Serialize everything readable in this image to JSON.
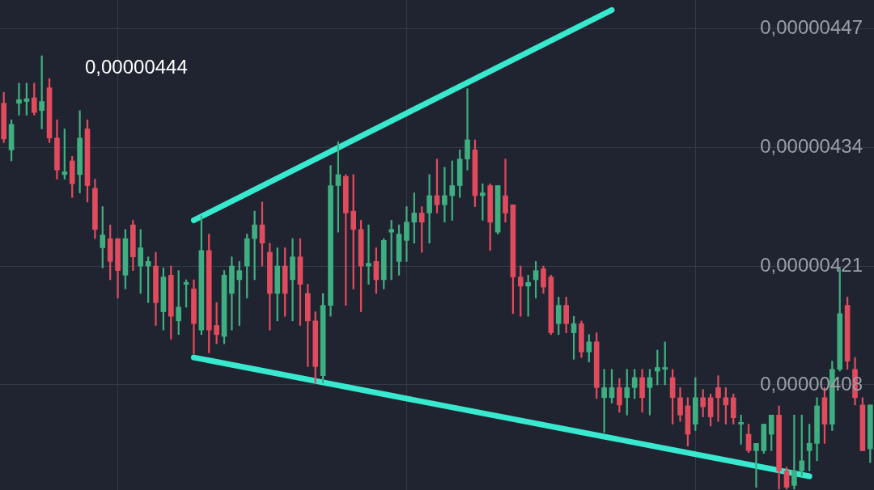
{
  "chart_data": {
    "type": "candlestick",
    "categories": [
      null,
      null,
      null,
      null,
      null,
      null,
      null,
      null,
      null,
      null,
      null,
      null,
      null,
      null,
      null,
      null,
      null,
      null,
      null,
      null,
      null,
      null,
      null,
      null,
      null,
      null,
      null,
      null,
      null,
      null,
      null,
      null,
      null,
      null,
      null,
      null,
      null,
      null,
      null,
      null,
      null,
      null,
      null,
      null,
      null,
      null,
      null,
      null,
      null,
      null,
      null,
      null,
      null,
      null,
      null,
      null,
      null,
      null,
      null,
      null,
      null,
      null,
      null,
      null,
      null,
      null,
      null,
      null,
      null,
      null,
      null,
      null,
      null,
      null,
      null,
      null,
      null,
      null,
      null,
      null,
      null,
      null,
      null,
      null,
      null,
      null,
      null,
      null,
      null,
      null,
      null,
      null,
      null,
      null,
      null,
      null,
      null,
      null,
      null,
      null,
      null,
      null,
      null,
      null,
      null,
      null,
      null,
      null,
      null,
      null,
      null,
      null,
      null,
      null,
      null
    ],
    "ohlc": [
      [
        4.388e-06,
        4.4e-06,
        4.345e-06,
        4.349e-06
      ],
      [
        4.337e-06,
        4.37e-06,
        4.325e-06,
        4.365e-06
      ],
      [
        4.388e-06,
        4.41e-06,
        4.375e-06,
        4.392e-06
      ],
      [
        4.39e-06,
        4.41e-06,
        4.375e-06,
        4.393e-06
      ],
      [
        4.394e-06,
        4.41e-06,
        4.375e-06,
        4.378e-06
      ],
      [
        4.38e-06,
        4.44e-06,
        4.36e-06,
        4.39e-06
      ],
      [
        4.405e-06,
        4.415e-06,
        4.345e-06,
        4.35e-06
      ],
      [
        4.35e-06,
        4.37e-06,
        4.305e-06,
        4.315e-06
      ],
      [
        4.31e-06,
        4.36e-06,
        4.305e-06,
        4.313e-06
      ],
      [
        4.325e-06,
        4.33e-06,
        4.285e-06,
        4.3e-06
      ],
      [
        4.31e-06,
        4.38e-06,
        4.29e-06,
        4.35e-06
      ],
      [
        4.36e-06,
        4.37e-06,
        4.28e-06,
        4.298e-06
      ],
      [
        4.295e-06,
        4.305e-06,
        4.24e-06,
        4.25e-06
      ],
      [
        4.23e-06,
        4.275e-06,
        4.208e-06,
        4.244e-06
      ],
      [
        4.24e-06,
        4.255e-06,
        4.195e-06,
        4.215e-06
      ],
      [
        4.24e-06,
        4.24e-06,
        4.175e-06,
        4.205e-06
      ],
      [
        4.2e-06,
        4.25e-06,
        4.185e-06,
        4.24e-06
      ],
      [
        4.255e-06,
        4.26e-06,
        4.205e-06,
        4.22e-06
      ],
      [
        4.21e-06,
        4.25e-06,
        4.18e-06,
        4.23e-06
      ],
      [
        4.21e-06,
        4.22e-06,
        4.17e-06,
        4.215e-06
      ],
      [
        4.21e-06,
        4.225e-06,
        4.145e-06,
        4.17e-06
      ],
      [
        4.16e-06,
        4.208e-06,
        4.14e-06,
        4.198e-06
      ],
      [
        4.2e-06,
        4.21e-06,
        4.13e-06,
        4.155e-06
      ],
      [
        4.15e-06,
        4.205e-06,
        4.135e-06,
        4.165e-06
      ],
      [
        4.19e-06,
        4.195e-06,
        4.165e-06,
        4.192e-06
      ],
      [
        4.185e-06,
        4.195e-06,
        4.114e-06,
        4.147e-06
      ],
      [
        4.14e-06,
        4.265e-06,
        4.135e-06,
        4.227e-06
      ],
      [
        4.227e-06,
        4.245e-06,
        4.115e-06,
        4.14e-06
      ],
      [
        4.145e-06,
        4.17e-06,
        4.125e-06,
        4.135e-06
      ],
      [
        4.133e-06,
        4.205e-06,
        4.125e-06,
        4.2e-06
      ],
      [
        4.18e-06,
        4.22e-06,
        4.14e-06,
        4.21e-06
      ],
      [
        4.195e-06,
        4.215e-06,
        4.145e-06,
        4.205e-06
      ],
      [
        4.21e-06,
        4.245e-06,
        4.175e-06,
        4.24e-06
      ],
      [
        4.24e-06,
        4.27e-06,
        4.195e-06,
        4.255e-06
      ],
      [
        4.255e-06,
        4.28e-06,
        4.21e-06,
        4.235e-06
      ],
      [
        4.225e-06,
        4.235e-06,
        4.14e-06,
        4.18e-06
      ],
      [
        4.18e-06,
        4.23e-06,
        4.15e-06,
        4.21e-06
      ],
      [
        4.21e-06,
        4.23e-06,
        4.155e-06,
        4.18e-06
      ],
      [
        4.195e-06,
        4.24e-06,
        4.15e-06,
        4.22e-06
      ],
      [
        4.22e-06,
        4.24e-06,
        4.145e-06,
        4.19e-06
      ],
      [
        4.18e-06,
        4.19e-06,
        4.1e-06,
        4.15e-06
      ],
      [
        4.15e-06,
        4.16e-06,
        4.082e-06,
        4.1e-06
      ],
      [
        4.09e-06,
        4.18e-06,
        4.082e-06,
        4.167e-06
      ],
      [
        4.167e-06,
        4.32e-06,
        4.155e-06,
        4.298e-06
      ],
      [
        4.298e-06,
        4.346e-06,
        4.247e-06,
        4.31e-06
      ],
      [
        4.308e-06,
        4.31e-06,
        4.167e-06,
        4.268e-06
      ],
      [
        4.27e-06,
        4.31e-06,
        4.185e-06,
        4.25e-06
      ],
      [
        4.25e-06,
        4.26e-06,
        4.16e-06,
        4.21e-06
      ],
      [
        4.21e-06,
        4.255e-06,
        4.19e-06,
        4.213e-06
      ],
      [
        4.215e-06,
        4.23e-06,
        4.18e-06,
        4.195e-06
      ],
      [
        4.195e-06,
        4.24e-06,
        4.185e-06,
        4.238e-06
      ],
      [
        4.247e-06,
        4.26e-06,
        4.195e-06,
        4.25e-06
      ],
      [
        4.215e-06,
        4.255e-06,
        4.2e-06,
        4.245e-06
      ],
      [
        4.238e-06,
        4.275e-06,
        4.215e-06,
        4.258e-06
      ],
      [
        4.258e-06,
        4.29e-06,
        4.235e-06,
        4.268e-06
      ],
      [
        4.268e-06,
        4.275e-06,
        4.225e-06,
        4.258e-06
      ],
      [
        4.268e-06,
        4.31e-06,
        4.235e-06,
        4.287e-06
      ],
      [
        4.287e-06,
        4.327e-06,
        4.268e-06,
        4.277e-06
      ],
      [
        4.277e-06,
        4.318e-06,
        4.258e-06,
        4.287e-06
      ],
      [
        4.287e-06,
        4.325e-06,
        4.26e-06,
        4.298e-06
      ],
      [
        4.298e-06,
        4.337e-06,
        4.285e-06,
        4.327e-06
      ],
      [
        4.327e-06,
        4.404e-06,
        4.315e-06,
        4.348e-06
      ],
      [
        4.337e-06,
        4.348e-06,
        4.275e-06,
        4.287e-06
      ],
      [
        4.287e-06,
        4.3e-06,
        4.26e-06,
        4.29e-06
      ],
      [
        4.298e-06,
        4.3e-06,
        4.227e-06,
        4.258e-06
      ],
      [
        4.247e-06,
        4.298e-06,
        4.245e-06,
        4.298e-06
      ],
      [
        4.287e-06,
        4.327e-06,
        4.258e-06,
        4.268e-06
      ],
      [
        4.277e-06,
        4.277e-06,
        4.158e-06,
        4.198e-06
      ],
      [
        4.198e-06,
        4.21e-06,
        4.155e-06,
        4.188e-06
      ],
      [
        4.188e-06,
        4.2e-06,
        4.155e-06,
        4.192e-06
      ],
      [
        4.195e-06,
        4.215e-06,
        4.175e-06,
        4.205e-06
      ],
      [
        4.207e-06,
        4.21e-06,
        4.18e-06,
        4.187e-06
      ],
      [
        4.198e-06,
        4.2e-06,
        4.135e-06,
        4.137e-06
      ],
      [
        4.147e-06,
        4.176e-06,
        4.135e-06,
        4.167e-06
      ],
      [
        4.167e-06,
        4.176e-06,
        4.137e-06,
        4.147e-06
      ],
      [
        4.137e-06,
        4.155e-06,
        4.108e-06,
        4.147e-06
      ],
      [
        4.147e-06,
        4.15e-06,
        4.11e-06,
        4.116e-06
      ],
      [
        4.116e-06,
        4.135e-06,
        4.105e-06,
        4.127e-06
      ],
      [
        4.127e-06,
        4.137e-06,
        4.065e-06,
        4.077e-06
      ],
      [
        4.066e-06,
        4.097e-06,
        4.028e-06,
        4.077e-06
      ],
      [
        4.066e-06,
        4.097e-06,
        4.06e-06,
        4.077e-06
      ],
      [
        4.077e-06,
        4.087e-06,
        4.05e-06,
        4.058e-06
      ],
      [
        4.066e-06,
        4.097e-06,
        4.047e-06,
        4.077e-06
      ],
      [
        4.077e-06,
        4.097e-06,
        4.065e-06,
        4.088e-06
      ],
      [
        4.088e-06,
        4.097e-06,
        4.05e-06,
        4.066e-06
      ],
      [
        4.077e-06,
        4.097e-06,
        4.047e-06,
        4.088e-06
      ],
      [
        4.095e-06,
        4.118e-06,
        4.08e-06,
        4.099e-06
      ],
      [
        4.097e-06,
        4.127e-06,
        4.08e-06,
        4.099e-06
      ],
      [
        4.088e-06,
        4.097e-06,
        4.037e-06,
        4.066e-06
      ],
      [
        4.066e-06,
        4.077e-06,
        4.04e-06,
        4.047e-06
      ],
      [
        4.057e-06,
        4.066e-06,
        4.013e-06,
        4.026e-06
      ],
      [
        4.037e-06,
        4.088e-06,
        4.03e-06,
        4.066e-06
      ],
      [
        4.066e-06,
        4.075e-06,
        4.045e-06,
        4.056e-06
      ],
      [
        4.066e-06,
        4.07e-06,
        4.035e-06,
        4.045e-06
      ],
      [
        4.077e-06,
        4.09e-06,
        4.04e-06,
        4.066e-06
      ],
      [
        4.066e-06,
        4.077e-06,
        4.037e-06,
        4.058e-06
      ],
      [
        4.066e-06,
        4.07e-06,
        4.037e-06,
        4.044e-06
      ],
      [
        4.037e-06,
        4.047e-06,
        4.015e-06,
        4.039e-06
      ],
      [
        4.026e-06,
        4.037e-06,
        4.006e-06,
        4.008e-06
      ],
      [
        4.008e-06,
        4.016e-06,
        3.968e-06,
        4.016e-06
      ],
      [
        4.008e-06,
        4.037e-06,
        4.005e-06,
        4.037e-06
      ],
      [
        4.026e-06,
        4.047e-06,
        4.008e-06,
        4.047e-06
      ],
      [
        4.047e-06,
        4.057e-06,
        3.966e-06,
        3.986e-06
      ],
      [
        3.986e-06,
        3.99e-06,
        3.966e-06,
        3.968e-06
      ],
      [
        3.97e-06,
        4.047e-06,
        3.966e-06,
        3.986e-06
      ],
      [
        3.986e-06,
        4.047e-06,
        3.98e-06,
        3.997e-06
      ],
      [
        4.008e-06,
        4.037e-06,
        3.986e-06,
        4.016e-06
      ],
      [
        4.016e-06,
        4.066e-06,
        3.997e-06,
        4.057e-06
      ],
      [
        4.066e-06,
        4.077e-06,
        4.016e-06,
        4.037e-06
      ],
      [
        4.037e-06,
        4.106e-06,
        4.03e-06,
        4.097e-06
      ],
      [
        4.097e-06,
        4.207e-06,
        4.095e-06,
        4.158e-06
      ],
      [
        4.167e-06,
        4.176e-06,
        4.097e-06,
        4.106e-06
      ],
      [
        4.097e-06,
        4.11e-06,
        4.058e-06,
        4.066e-06
      ],
      [
        4.058e-06,
        4.066e-06,
        4.008e-06,
        4.008e-06
      ],
      [
        4.01e-06,
        4.058e-06,
        3.995e-06,
        4.058e-06
      ]
    ],
    "colors": [
      "#e04b5e",
      "#3fae80",
      "#3fae80",
      "#3fae80",
      "#e04b5e",
      "#3fae80",
      "#e04b5e",
      "#e04b5e",
      "#3fae80",
      "#e04b5e",
      "#3fae80",
      "#e04b5e",
      "#e04b5e",
      "#3fae80",
      "#e04b5e",
      "#e04b5e",
      "#3fae80",
      "#e04b5e",
      "#3fae80",
      "#3fae80",
      "#e04b5e",
      "#3fae80",
      "#e04b5e",
      "#3fae80",
      "#3fae80",
      "#e04b5e",
      "#3fae80",
      "#e04b5e",
      "#e04b5e",
      "#3fae80",
      "#3fae80",
      "#3fae80",
      "#3fae80",
      "#3fae80",
      "#e04b5e",
      "#e04b5e",
      "#3fae80",
      "#e04b5e",
      "#3fae80",
      "#e04b5e",
      "#e04b5e",
      "#e04b5e",
      "#3fae80",
      "#3fae80",
      "#3fae80",
      "#e04b5e",
      "#e04b5e",
      "#e04b5e",
      "#3fae80",
      "#e04b5e",
      "#3fae80",
      "#3fae80",
      "#3fae80",
      "#3fae80",
      "#3fae80",
      "#e04b5e",
      "#3fae80",
      "#e04b5e",
      "#3fae80",
      "#3fae80",
      "#3fae80",
      "#3fae80",
      "#e04b5e",
      "#3fae80",
      "#e04b5e",
      "#3fae80",
      "#e04b5e",
      "#e04b5e",
      "#e04b5e",
      "#3fae80",
      "#3fae80",
      "#e04b5e",
      "#e04b5e",
      "#3fae80",
      "#e04b5e",
      "#3fae80",
      "#e04b5e",
      "#3fae80",
      "#e04b5e",
      "#3fae80",
      "#3fae80",
      "#e04b5e",
      "#3fae80",
      "#3fae80",
      "#e04b5e",
      "#3fae80",
      "#3fae80",
      "#3fae80",
      "#e04b5e",
      "#e04b5e",
      "#e04b5e",
      "#3fae80",
      "#e04b5e",
      "#e04b5e",
      "#e04b5e",
      "#e04b5e",
      "#e04b5e",
      "#3fae80",
      "#e04b5e",
      "#3fae80",
      "#3fae80",
      "#3fae80",
      "#e04b5e",
      "#e04b5e",
      "#3fae80",
      "#3fae80",
      "#3fae80",
      "#3fae80",
      "#e04b5e",
      "#3fae80",
      "#3fae80",
      "#e04b5e",
      "#e04b5e",
      "#e04b5e",
      "#3fae80"
    ],
    "series": [
      {
        "type": "line",
        "color": "#38e8cf",
        "values": [
          null,
          null,
          null,
          null,
          null,
          null,
          null,
          null,
          null,
          null,
          null,
          null,
          null,
          null,
          null,
          null,
          null,
          null,
          null,
          null,
          null,
          null,
          null,
          null,
          null,
          4.26e-06,
          null,
          null,
          null,
          null,
          null,
          null,
          null,
          null,
          null,
          null,
          null,
          null,
          null,
          null,
          null,
          null,
          null,
          null,
          null,
          null,
          null,
          null,
          null,
          null,
          null,
          null,
          null,
          null,
          null,
          null,
          null,
          null,
          null,
          null,
          null,
          null,
          null,
          null,
          null,
          null,
          null,
          null,
          null,
          null,
          null,
          null,
          null,
          null,
          null,
          null,
          null,
          null,
          null,
          null,
          4.49e-06,
          null,
          null,
          null,
          null,
          null,
          null,
          null,
          null,
          null,
          null,
          null,
          null,
          null,
          null,
          null,
          null,
          null,
          null,
          null,
          null,
          null,
          null,
          null,
          null,
          null,
          null,
          null,
          null,
          null,
          null,
          null,
          null,
          null,
          null
        ]
      },
      {
        "type": "line",
        "color": "#38e8cf",
        "values": [
          null,
          null,
          null,
          null,
          null,
          null,
          null,
          null,
          null,
          null,
          null,
          null,
          null,
          null,
          null,
          null,
          null,
          null,
          null,
          null,
          null,
          null,
          null,
          null,
          null,
          4.11e-06,
          null,
          null,
          null,
          null,
          null,
          null,
          null,
          null,
          null,
          null,
          null,
          null,
          null,
          null,
          null,
          null,
          null,
          null,
          null,
          null,
          null,
          null,
          null,
          null,
          null,
          null,
          null,
          null,
          null,
          null,
          null,
          null,
          null,
          null,
          null,
          null,
          null,
          null,
          null,
          null,
          null,
          null,
          null,
          null,
          null,
          null,
          null,
          null,
          null,
          null,
          null,
          null,
          null,
          null,
          null,
          null,
          null,
          null,
          null,
          null,
          null,
          null,
          null,
          null,
          null,
          null,
          null,
          null,
          null,
          null,
          null,
          null,
          null,
          null,
          null,
          null,
          null,
          null,
          null,
          null,
          3.98e-06,
          null,
          null,
          null,
          null,
          null,
          null,
          null,
          null
        ]
      }
    ],
    "ylim": [
      3.965e-06,
      4.501e-06
    ],
    "yticks": [
      {
        "value": 4.08e-06,
        "label": "0,00000408"
      },
      {
        "value": 4.21e-06,
        "label": "0,00000421"
      },
      {
        "value": 4.34e-06,
        "label": "0,00000434"
      },
      {
        "value": 4.47e-06,
        "label": "0,00000447"
      }
    ],
    "tick_labels": "y",
    "grid": true,
    "legend": false,
    "annotations": [
      "0,00000444"
    ]
  }
}
